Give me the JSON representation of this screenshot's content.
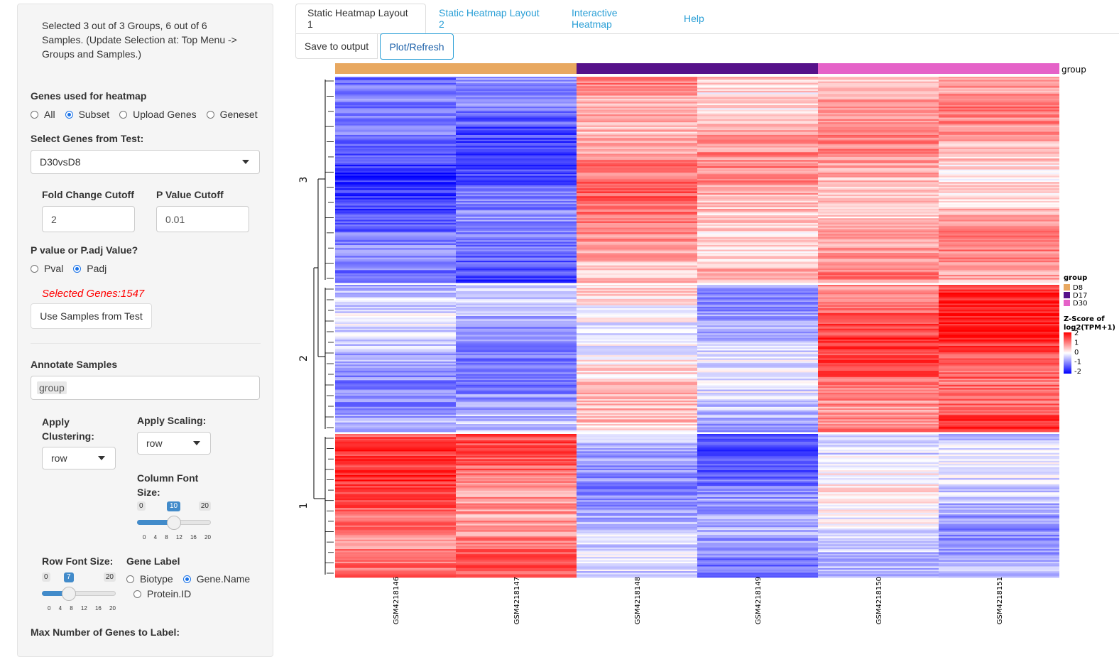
{
  "sidebar": {
    "selection_info": "Selected 3 out of 3 Groups, 6 out of 6 Samples. (Update Selection at: Top Menu -> Groups and Samples.)",
    "genes_used_label": "Genes used for heatmap",
    "genes_used_options": [
      "All",
      "Subset",
      "Upload Genes",
      "Geneset"
    ],
    "genes_used_selected": "Subset",
    "select_genes_label": "Select Genes from Test:",
    "select_genes_value": "D30vsD8",
    "fold_change_label": "Fold Change Cutoff",
    "fold_change_value": "2",
    "pvalue_label": "P Value Cutoff",
    "pvalue_value": "0.01",
    "pval_padj_label": "P value or P.adj Value?",
    "pval_padj_options": [
      "Pval",
      "Padj"
    ],
    "pval_padj_selected": "Padj",
    "selected_genes_text": "Selected Genes:1547",
    "use_samples_button": "Use Samples from Test",
    "annotate_label": "Annotate Samples",
    "annotate_value": "group",
    "clustering_label": "Apply Clustering:",
    "clustering_value": "row",
    "scaling_label": "Apply Scaling:",
    "scaling_value": "row",
    "col_font_label": "Column Font Size:",
    "col_font_slider": {
      "min": "0",
      "max": "20",
      "value": "10",
      "fraction": 0.5,
      "ticks": [
        "0",
        "4",
        "8",
        "12",
        "16",
        "20"
      ]
    },
    "row_font_label": "Row Font Size:",
    "row_font_slider": {
      "min": "0",
      "max": "20",
      "value": "7",
      "fraction": 0.35,
      "ticks": [
        "0",
        "4",
        "8",
        "12",
        "16",
        "20"
      ]
    },
    "gene_label_label": "Gene Label",
    "gene_label_options": [
      "Biotype",
      "Gene.Name",
      "Protein.ID"
    ],
    "gene_label_selected": "Gene.Name",
    "max_genes_label": "Max Number of Genes to Label:"
  },
  "tabs": [
    {
      "label": "Static Heatmap Layout 1",
      "active": true
    },
    {
      "label": "Static Heatmap Layout 2",
      "active": false
    },
    {
      "label": "Interactive Heatmap",
      "active": false
    },
    {
      "label": "Help",
      "active": false
    }
  ],
  "actions": {
    "save_label": "Save to output",
    "refresh_label": "Plot/Refresh"
  },
  "colors": {
    "D8": "#e8a860",
    "D17": "#56118a",
    "D30": "#e562c8",
    "high": "#ff0000",
    "mid": "#ffffff",
    "low": "#0000ff",
    "accent": "#2a9fd6"
  },
  "chart_data": {
    "type": "heatmap",
    "columns": [
      "GSM4218146",
      "GSM4218147",
      "GSM4218148",
      "GSM4218149",
      "GSM4218150",
      "GSM4218151"
    ],
    "column_groups": [
      "D8",
      "D8",
      "D17",
      "D17",
      "D30",
      "D30"
    ],
    "annotation_title": "group",
    "row_clusters": [
      {
        "label": "3",
        "values": [
          -1.3,
          -1.2,
          0.9,
          0.6,
          0.7,
          0.6
        ]
      },
      {
        "label": "2",
        "values": [
          -0.6,
          -0.8,
          0.2,
          -0.5,
          1.2,
          1.5
        ]
      },
      {
        "label": "1",
        "values": [
          1.3,
          1.1,
          -0.6,
          -1.0,
          -0.2,
          -0.5
        ]
      }
    ],
    "legend_group_title": "group",
    "legend_groups": [
      "D8",
      "D17",
      "D30"
    ],
    "legend_scale_title": "Z-Score of log2(TPM+1)",
    "legend_scale_ticks": [
      "2",
      "1",
      "0",
      "-1",
      "-2"
    ],
    "scale_range": [
      -2,
      2
    ]
  }
}
